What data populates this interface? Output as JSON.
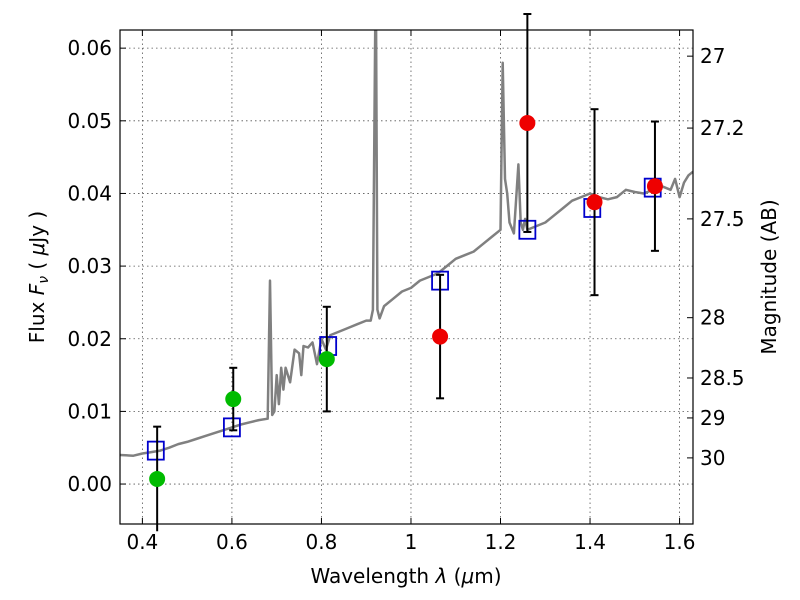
{
  "chart_data": {
    "type": "scatter",
    "xlabel_parts": [
      "Wavelength  ",
      "λ",
      " (",
      "μ",
      "m)"
    ],
    "ylabel_parts": [
      "Flux  ",
      "F",
      "ν",
      "  ( ",
      "μ",
      "Jy )"
    ],
    "y2label": "Magnitude (AB)",
    "xlim": [
      0.35,
      1.63
    ],
    "ylim": [
      -0.0055,
      0.0625
    ],
    "x_ticks": [
      {
        "value": 0.4,
        "label": "0.4"
      },
      {
        "value": 0.6,
        "label": "0.6"
      },
      {
        "value": 0.8,
        "label": "0.8"
      },
      {
        "value": 1.0,
        "label": "1"
      },
      {
        "value": 1.2,
        "label": "1.2"
      },
      {
        "value": 1.4,
        "label": "1.4"
      },
      {
        "value": 1.6,
        "label": "1.6"
      }
    ],
    "y_ticks": [
      {
        "value": 0.0,
        "label": "0.00"
      },
      {
        "value": 0.01,
        "label": "0.01"
      },
      {
        "value": 0.02,
        "label": "0.02"
      },
      {
        "value": 0.03,
        "label": "0.03"
      },
      {
        "value": 0.04,
        "label": "0.04"
      },
      {
        "value": 0.05,
        "label": "0.05"
      },
      {
        "value": 0.06,
        "label": "0.06"
      }
    ],
    "y2_ticks": [
      {
        "flux": 0.0589,
        "label": "27"
      },
      {
        "flux": 0.049,
        "label": "27.2"
      },
      {
        "flux": 0.0365,
        "label": "27.5"
      },
      {
        "flux": 0.0229,
        "label": "28"
      },
      {
        "flux": 0.0146,
        "label": "28.5"
      },
      {
        "flux": 0.0091,
        "label": "29"
      },
      {
        "flux": 0.0036,
        "label": "30"
      }
    ],
    "grid": true,
    "colors": {
      "model": "#808080",
      "model_photometry": "#0000cc",
      "optical_detections": "#00bb00",
      "nir_detections": "#ee0000",
      "errorbar": "#000000"
    },
    "series": [
      {
        "kind": "line",
        "color": "#808080",
        "x": [
          0.35,
          0.38,
          0.4,
          0.42,
          0.44,
          0.46,
          0.48,
          0.5,
          0.52,
          0.54,
          0.56,
          0.58,
          0.6,
          0.62,
          0.64,
          0.66,
          0.68,
          0.685,
          0.69,
          0.695,
          0.7,
          0.705,
          0.71,
          0.715,
          0.72,
          0.73,
          0.74,
          0.75,
          0.755,
          0.76,
          0.77,
          0.78,
          0.79,
          0.8,
          0.81,
          0.82,
          0.84,
          0.86,
          0.88,
          0.9,
          0.91,
          0.915,
          0.92,
          0.922,
          0.925,
          0.93,
          0.94,
          0.96,
          0.98,
          1.0,
          1.02,
          1.04,
          1.06,
          1.08,
          1.1,
          1.12,
          1.14,
          1.16,
          1.18,
          1.2,
          1.205,
          1.21,
          1.215,
          1.22,
          1.23,
          1.24,
          1.245,
          1.25,
          1.255,
          1.26,
          1.28,
          1.3,
          1.32,
          1.34,
          1.36,
          1.38,
          1.4,
          1.42,
          1.44,
          1.46,
          1.48,
          1.5,
          1.52,
          1.54,
          1.56,
          1.58,
          1.59,
          1.6,
          1.61,
          1.62,
          1.63
        ],
        "y": [
          0.004,
          0.0039,
          0.0042,
          0.0044,
          0.0046,
          0.005,
          0.0055,
          0.0058,
          0.0062,
          0.0066,
          0.007,
          0.0074,
          0.0078,
          0.0082,
          0.0085,
          0.0088,
          0.009,
          0.028,
          0.0095,
          0.01,
          0.015,
          0.011,
          0.016,
          0.013,
          0.016,
          0.014,
          0.0185,
          0.018,
          0.015,
          0.019,
          0.0188,
          0.0195,
          0.0165,
          0.02,
          0.0185,
          0.0205,
          0.021,
          0.0215,
          0.022,
          0.0225,
          0.0225,
          0.024,
          0.0625,
          0.0625,
          0.024,
          0.0228,
          0.0245,
          0.0255,
          0.0265,
          0.027,
          0.028,
          0.0285,
          0.029,
          0.03,
          0.031,
          0.0315,
          0.032,
          0.033,
          0.034,
          0.035,
          0.058,
          0.042,
          0.04,
          0.036,
          0.0345,
          0.044,
          0.036,
          0.035,
          0.0365,
          0.035,
          0.0355,
          0.036,
          0.037,
          0.038,
          0.039,
          0.0395,
          0.04,
          0.0395,
          0.0392,
          0.0395,
          0.0405,
          0.0402,
          0.04,
          0.0405,
          0.041,
          0.0405,
          0.042,
          0.0395,
          0.0415,
          0.0425,
          0.043
        ]
      },
      {
        "kind": "model_photometry",
        "marker": "open-square",
        "color": "#0000cc",
        "points": [
          {
            "x": 0.43,
            "y": 0.0046
          },
          {
            "x": 0.6,
            "y": 0.0078
          },
          {
            "x": 0.815,
            "y": 0.019
          },
          {
            "x": 1.065,
            "y": 0.028
          },
          {
            "x": 1.26,
            "y": 0.035
          },
          {
            "x": 1.405,
            "y": 0.038
          },
          {
            "x": 1.54,
            "y": 0.0408
          }
        ]
      },
      {
        "kind": "optical_detections",
        "marker": "filled-circle",
        "color": "#00bb00",
        "points": [
          {
            "x": 0.433,
            "y": 0.0007,
            "err": 0.0072
          },
          {
            "x": 0.603,
            "y": 0.0117,
            "err": 0.0043
          },
          {
            "x": 0.812,
            "y": 0.0172,
            "err": 0.0072
          }
        ]
      },
      {
        "kind": "nir_detections",
        "marker": "filled-circle",
        "color": "#ee0000",
        "points": [
          {
            "x": 1.065,
            "y": 0.0203,
            "err": 0.0085
          },
          {
            "x": 1.26,
            "y": 0.0497,
            "err": 0.015
          },
          {
            "x": 1.41,
            "y": 0.0388,
            "err": 0.0128
          },
          {
            "x": 1.545,
            "y": 0.041,
            "err": 0.0089
          }
        ]
      }
    ]
  }
}
